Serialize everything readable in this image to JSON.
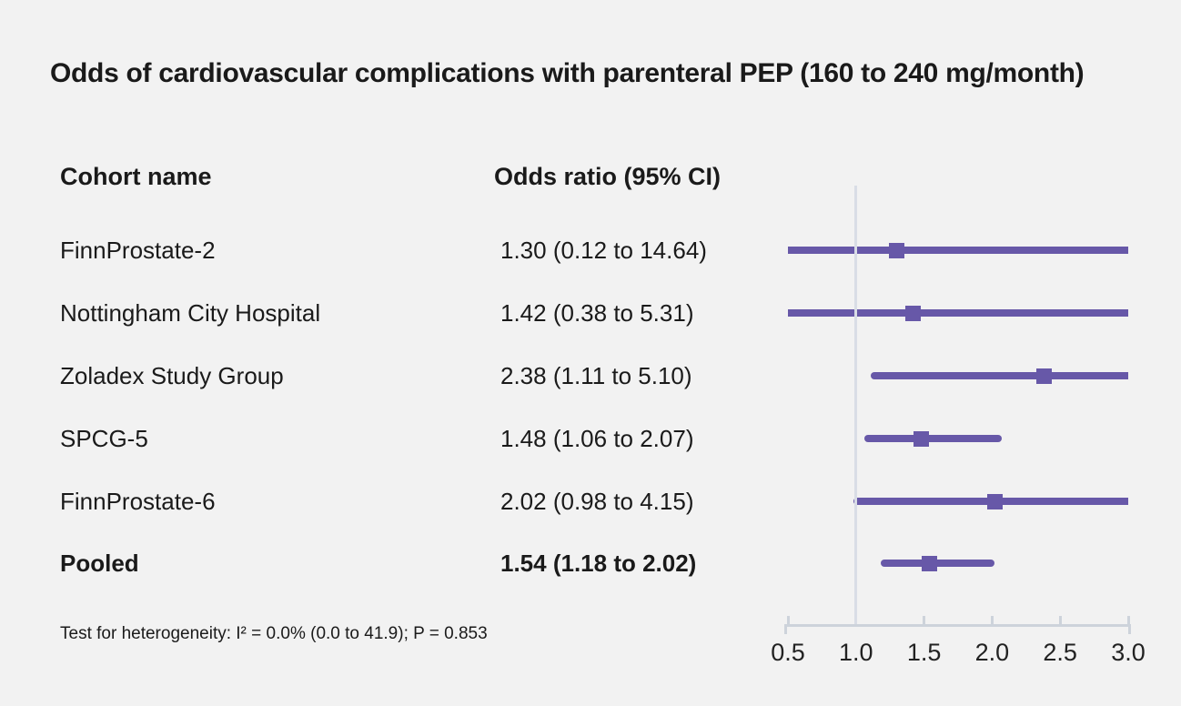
{
  "title": "Odds of cardiovascular complications with parenteral PEP (160 to 240 mg/month)",
  "columns": {
    "cohort": "Cohort name",
    "odds_ratio": "Odds ratio (95% CI)"
  },
  "footnote": "Test for heterogeneity: I² = 0.0% (0.0 to 41.9); P = 0.853",
  "colors": {
    "background": "#f2f2f2",
    "text": "#1a1a1a",
    "marker": "#6758a8",
    "reference_line": "#d9dde6",
    "axis": "#cdd3db"
  },
  "chart_data": {
    "type": "forest",
    "title": "Odds of cardiovascular complications with parenteral PEP (160 to 240 mg/month)",
    "xlabel": "",
    "xlim": [
      0.5,
      3.0
    ],
    "reference_value": 1.0,
    "axis_ticks": [
      0.5,
      1.0,
      1.5,
      2.0,
      2.5,
      3.0
    ],
    "tick_labels": [
      "0.5",
      "1.0",
      "1.5",
      "2.0",
      "2.5",
      "3.0"
    ],
    "grid": false,
    "rows": [
      {
        "cohort": "FinnProstate-2",
        "label": "1.30 (0.12 to 14.64)",
        "or": 1.3,
        "ci_low": 0.12,
        "ci_high": 14.64,
        "bold": false
      },
      {
        "cohort": "Nottingham City Hospital",
        "label": "1.42 (0.38 to 5.31)",
        "or": 1.42,
        "ci_low": 0.38,
        "ci_high": 5.31,
        "bold": false
      },
      {
        "cohort": "Zoladex Study Group",
        "label": "2.38 (1.11 to 5.10)",
        "or": 2.38,
        "ci_low": 1.11,
        "ci_high": 5.1,
        "bold": false
      },
      {
        "cohort": "SPCG-5",
        "label": "1.48 (1.06 to 2.07)",
        "or": 1.48,
        "ci_low": 1.06,
        "ci_high": 2.07,
        "bold": false
      },
      {
        "cohort": "FinnProstate-6",
        "label": "2.02 (0.98 to 4.15)",
        "or": 2.02,
        "ci_low": 0.98,
        "ci_high": 4.15,
        "bold": false
      },
      {
        "cohort": "Pooled",
        "label": "1.54 (1.18 to 2.02)",
        "or": 1.54,
        "ci_low": 1.18,
        "ci_high": 2.02,
        "bold": true
      }
    ]
  }
}
